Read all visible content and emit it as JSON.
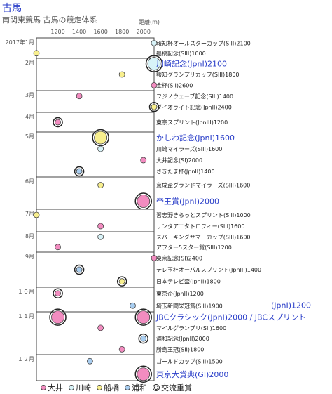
{
  "header": {
    "title": "古馬",
    "subtitle": "南関東競馬 古馬の競走体系",
    "unit_label": "距離(m)"
  },
  "legend": [
    {
      "name": "大井",
      "color": "#f28cc0"
    },
    {
      "name": "川崎",
      "color": "#d8f3f8"
    },
    {
      "name": "船橋",
      "color": "#f8ef8e"
    },
    {
      "name": "浦和",
      "color": "#a8cdf0"
    },
    {
      "name": "交流重賞",
      "color": "#222222",
      "ring": true
    }
  ],
  "chart_data": {
    "type": "scatter",
    "x_label": "距離(m)",
    "x_ticks": [
      1200,
      1400,
      1600,
      1800,
      2000
    ],
    "xlim": [
      1000,
      2100
    ],
    "months": [
      {
        "label": "2017年1月",
        "rows": [
          {
            "name": "報知杯オールスターカップ(SIII)2100",
            "distance": 2100,
            "track": "川崎",
            "grade": "SIII"
          },
          {
            "name": "船橋記念(SIII)1000",
            "distance": 1000,
            "track": "船橋",
            "grade": "SIII"
          }
        ]
      },
      {
        "label": "2月",
        "rows": [
          {
            "name": "川崎記念(JpnI)2100",
            "distance": 2100,
            "track": "川崎",
            "grade": "JpnI",
            "intl": true,
            "big": true
          },
          {
            "name": "報知グランプリカップ(SIII)1800",
            "distance": 1800,
            "track": "船橋",
            "grade": "SIII"
          },
          {
            "name": "金杯(SII)2600",
            "distance": 2600,
            "track": "大井",
            "grade": "SII"
          }
        ]
      },
      {
        "label": "3月",
        "rows": [
          {
            "name": "フジノウェーブ記念(SIII)1400",
            "distance": 1400,
            "track": "大井",
            "grade": "SIII"
          },
          {
            "name": "ダイオライト記念(JpnII)2400",
            "distance": 2400,
            "track": "船橋",
            "grade": "JpnII",
            "intl": true
          }
        ]
      },
      {
        "label": "4月",
        "rows": [
          {
            "name": "東京スプリント(JpnIII)1200",
            "distance": 1200,
            "track": "大井",
            "grade": "JpnIII",
            "intl": true
          }
        ]
      },
      {
        "label": "5月",
        "rows": [
          {
            "name": "かしわ記念(JpnI)1600",
            "distance": 1600,
            "track": "船橋",
            "grade": "JpnI",
            "intl": true,
            "big": true
          },
          {
            "name": "川崎マイラーズ(SIII)1600",
            "distance": 1600,
            "track": "川崎",
            "grade": "SIII"
          },
          {
            "name": "大井記念(SI)2000",
            "distance": 2000,
            "track": "大井",
            "grade": "SI"
          },
          {
            "name": "さきたま杯(JpnII)1400",
            "distance": 1400,
            "track": "浦和",
            "grade": "JpnII",
            "intl": true
          }
        ]
      },
      {
        "label": "6月",
        "rows": [
          {
            "name": "京成盃グランドマイラーズ(SIII)1600",
            "distance": 1600,
            "track": "船橋",
            "grade": "SIII"
          },
          {
            "name": "帝王賞(JpnI)2000",
            "distance": 2000,
            "track": "大井",
            "grade": "JpnI",
            "intl": true,
            "big": true
          }
        ]
      },
      {
        "label": "7月",
        "rows": [
          {
            "name": "習志野きらっとスプリント(SIII)1000",
            "distance": 1000,
            "track": "船橋",
            "grade": "SIII"
          },
          {
            "name": "サンタアニタトロフィー(SIII)1600",
            "distance": 1600,
            "track": "大井",
            "grade": "SIII"
          }
        ]
      },
      {
        "label": "8月",
        "rows": [
          {
            "name": "スパーキングサマーカップ(SIII)1600",
            "distance": 1600,
            "track": "川崎",
            "grade": "SIII"
          },
          {
            "name": "アフター5スター賞(SIII)1200",
            "distance": 1200,
            "track": "大井",
            "grade": "SIII"
          }
        ]
      },
      {
        "label": "9月",
        "rows": [
          {
            "name": "東京記念(SI)2400",
            "distance": 2400,
            "track": "大井",
            "grade": "SI"
          },
          {
            "name": "テレ玉杯オーバルスプリント(JpnIII)1400",
            "distance": 1400,
            "track": "浦和",
            "grade": "JpnIII",
            "intl": true
          },
          {
            "name": "日本テレビ盃(JpnII)1800",
            "distance": 1800,
            "track": "船橋",
            "grade": "JpnII",
            "intl": true
          }
        ]
      },
      {
        "label": "１０月",
        "rows": [
          {
            "name": "東京盃(JpnII)1200",
            "distance": 1200,
            "track": "大井",
            "grade": "JpnII",
            "intl": true
          },
          {
            "name": "埼玉新聞栄冠賞(SIII)1900",
            "distance": 1900,
            "track": "浦和",
            "grade": "SIII"
          }
        ]
      },
      {
        "label": "１１月",
        "rows": [
          {
            "name": "JBCクラシック(JpnI)2000 / JBCスプリント",
            "extra": "(JpnI)1200",
            "distance": 2000,
            "distance2": 1200,
            "track": "大井",
            "grade": "JpnI",
            "intl": true,
            "big": true
          },
          {
            "name": "マイルグランプリ(SII)1600",
            "distance": 1600,
            "track": "大井",
            "grade": "SII"
          },
          {
            "name": "浦和記念(JpnII)2000",
            "distance": 2000,
            "track": "浦和",
            "grade": "JpnII",
            "intl": true
          },
          {
            "name": "勝島王冠(SII)1800",
            "distance": 1800,
            "track": "大井",
            "grade": "SII"
          }
        ]
      },
      {
        "label": "１２月",
        "rows": [
          {
            "name": "ゴールドカップ(SIII)1500",
            "distance": 1500,
            "track": "浦和",
            "grade": "SIII"
          },
          {
            "name": "東京大賞典(GI)2000",
            "distance": 2000,
            "track": "大井",
            "grade": "GI",
            "intl": true,
            "big": true
          }
        ]
      }
    ]
  }
}
